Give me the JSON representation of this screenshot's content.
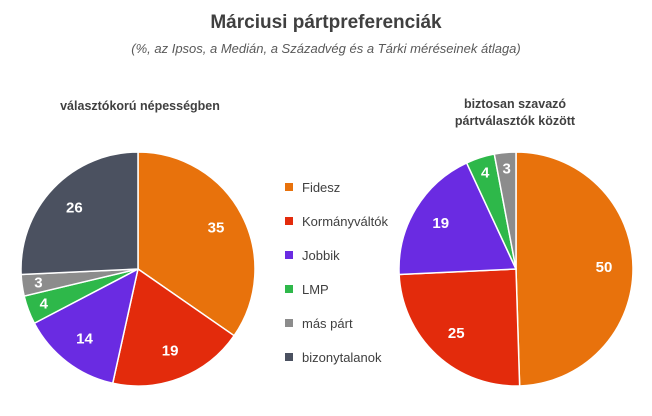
{
  "header": {
    "title": "Márciusi pártpreferenciák",
    "subtitle": "(%, az Ipsos, a Medián, a Századvég és a Tárki méréseinek átlaga)"
  },
  "colors": {
    "Fidesz": "#E8720C",
    "Kormányváltók": "#E32B0C",
    "Jobbik": "#6A2BE2",
    "LMP": "#2EB84A",
    "más párt": "#8C8C8C",
    "bizonytalanok": "#4B5160"
  },
  "legend": [
    "Fidesz",
    "Kormányváltók",
    "Jobbik",
    "LMP",
    "más párt",
    "bizonytalanok"
  ],
  "chart_data": [
    {
      "type": "pie",
      "title": "választókorú népességben",
      "categories": [
        "Fidesz",
        "Kormányváltók",
        "Jobbik",
        "LMP",
        "más párt",
        "bizonytalanok"
      ],
      "values": [
        35,
        19,
        14,
        4,
        3,
        26
      ],
      "labels": [
        "35",
        "19",
        "14",
        "4",
        "3",
        "26"
      ]
    },
    {
      "type": "pie",
      "title_lines": [
        "biztosan szavazó",
        "pártválasztók között"
      ],
      "categories": [
        "Fidesz",
        "Kormányváltók",
        "Jobbik",
        "LMP",
        "más párt"
      ],
      "values": [
        50,
        25,
        19,
        4,
        3
      ],
      "labels": [
        "50",
        "25",
        "19",
        "4",
        "3"
      ]
    }
  ]
}
